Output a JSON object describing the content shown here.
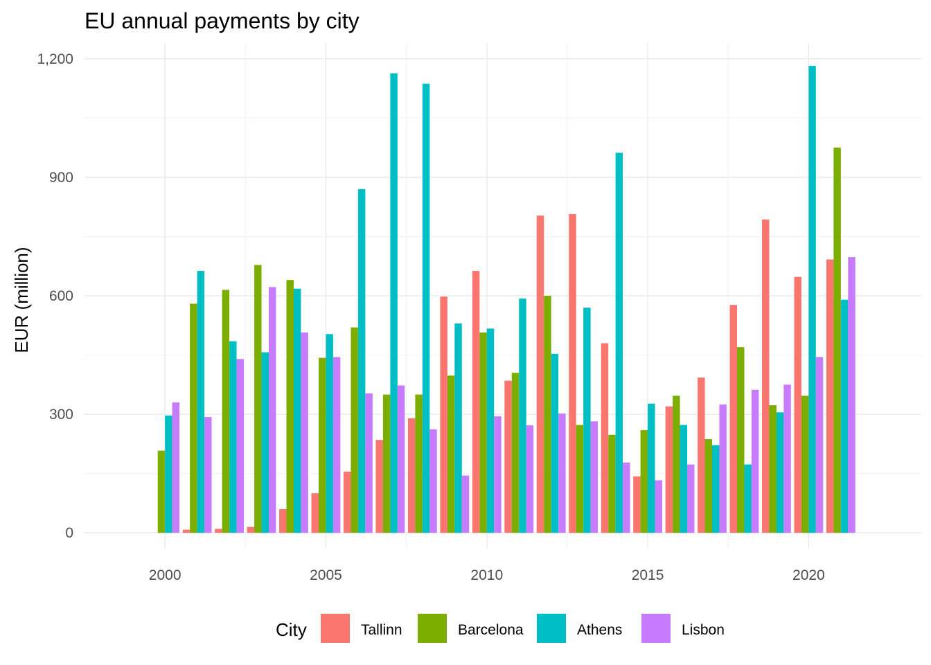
{
  "chart_data": {
    "type": "bar",
    "title": "EU annual payments by city",
    "xlabel": "",
    "ylabel": "EUR (million)",
    "x": [
      2000,
      2001,
      2002,
      2003,
      2004,
      2005,
      2006,
      2007,
      2008,
      2009,
      2010,
      2011,
      2012,
      2013,
      2014,
      2015,
      2016,
      2017,
      2018,
      2019,
      2020,
      2021
    ],
    "x_ticks": [
      2000,
      2005,
      2010,
      2015,
      2020
    ],
    "x_tick_labels": [
      "2000",
      "2005",
      "2010",
      "2015",
      "2020"
    ],
    "xlim": [
      1997.5,
      2023.5
    ],
    "ylim": [
      -40,
      1240
    ],
    "y_ticks": [
      0,
      300,
      600,
      900,
      1200
    ],
    "y_tick_labels": [
      "0",
      "300",
      "600",
      "900",
      "1,200"
    ],
    "grid": true,
    "legend": {
      "title": "City",
      "position": "bottom"
    },
    "series": [
      {
        "name": "Tallinn",
        "color": "#F8766D",
        "values": [
          0,
          8,
          10,
          15,
          60,
          100,
          155,
          235,
          290,
          598,
          663,
          385,
          803,
          807,
          480,
          143,
          320,
          393,
          577,
          793,
          648,
          692
        ]
      },
      {
        "name": "Barcelona",
        "color": "#7CAE00",
        "values": [
          208,
          580,
          615,
          678,
          640,
          443,
          520,
          350,
          350,
          398,
          507,
          405,
          600,
          273,
          248,
          260,
          347,
          237,
          470,
          323,
          347,
          975
        ]
      },
      {
        "name": "Athens",
        "color": "#00BFC4",
        "values": [
          297,
          663,
          485,
          457,
          618,
          503,
          870,
          1163,
          1137,
          530,
          517,
          593,
          453,
          570,
          962,
          327,
          273,
          222,
          173,
          305,
          1182,
          590
        ]
      },
      {
        "name": "Lisbon",
        "color": "#C77CFF",
        "values": [
          330,
          293,
          440,
          622,
          507,
          445,
          353,
          373,
          262,
          145,
          295,
          272,
          302,
          282,
          178,
          133,
          173,
          325,
          362,
          375,
          445,
          698
        ]
      }
    ]
  }
}
